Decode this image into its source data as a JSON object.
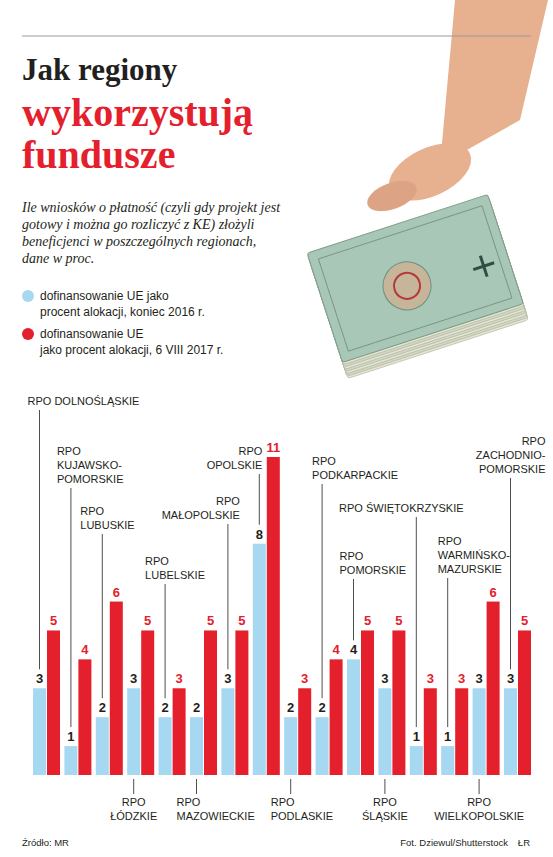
{
  "chart_data": {
    "type": "bar",
    "title": "Jak regiony wykorzystują fundusze",
    "subtitle": "Ile wniosków o płatność (czyli gdy projekt jest gotowy i można go rozliczyć z KE) złożyli beneficjenci w poszczególnych regionach, dane w proc.",
    "categories": [
      "RPO DOLNOŚLĄSKIE",
      "RPO KUJAWSKO-POMORSKIE",
      "RPO LUBUSKIE",
      "RPO ŁÓDZKIE",
      "RPO LUBELSKIE",
      "RPO MAZOWIECKIE",
      "RPO MAŁOPOLSKIE",
      "RPO OPOLSKIE",
      "RPO PODLASKIE",
      "RPO PODKARPACKIE",
      "RPO POMORSKIE",
      "RPO ŚLĄSKIE",
      "RPO ŚWIĘTOKRZYSKIE",
      "RPO WARMIŃSKO-MAZURSKIE",
      "RPO WIELKOPOLSKIE",
      "RPO ZACHODNIO-POMORSKIE"
    ],
    "series": [
      {
        "name": "dofinansowanie UE jako procent alokacji, koniec 2016 r.",
        "color": "#a6d8f1",
        "values": [
          3,
          1,
          2,
          3,
          2,
          2,
          3,
          8,
          2,
          2,
          4,
          3,
          1,
          1,
          3,
          3
        ]
      },
      {
        "name": "dofinansowanie UE jako procent alokacji, 6 VIII 2017 r.",
        "color": "#e4202c",
        "values": [
          5,
          4,
          6,
          5,
          3,
          5,
          5,
          11,
          3,
          4,
          5,
          5,
          3,
          3,
          6,
          5
        ]
      }
    ],
    "ylim": [
      0,
      11
    ],
    "tick_labels": false,
    "grid": false,
    "data_labels": true,
    "legend": "top-left",
    "annotations": [
      "Źródło: MR",
      "Fot. Dziewul/Shutterstock",
      "ŁR"
    ]
  }
}
